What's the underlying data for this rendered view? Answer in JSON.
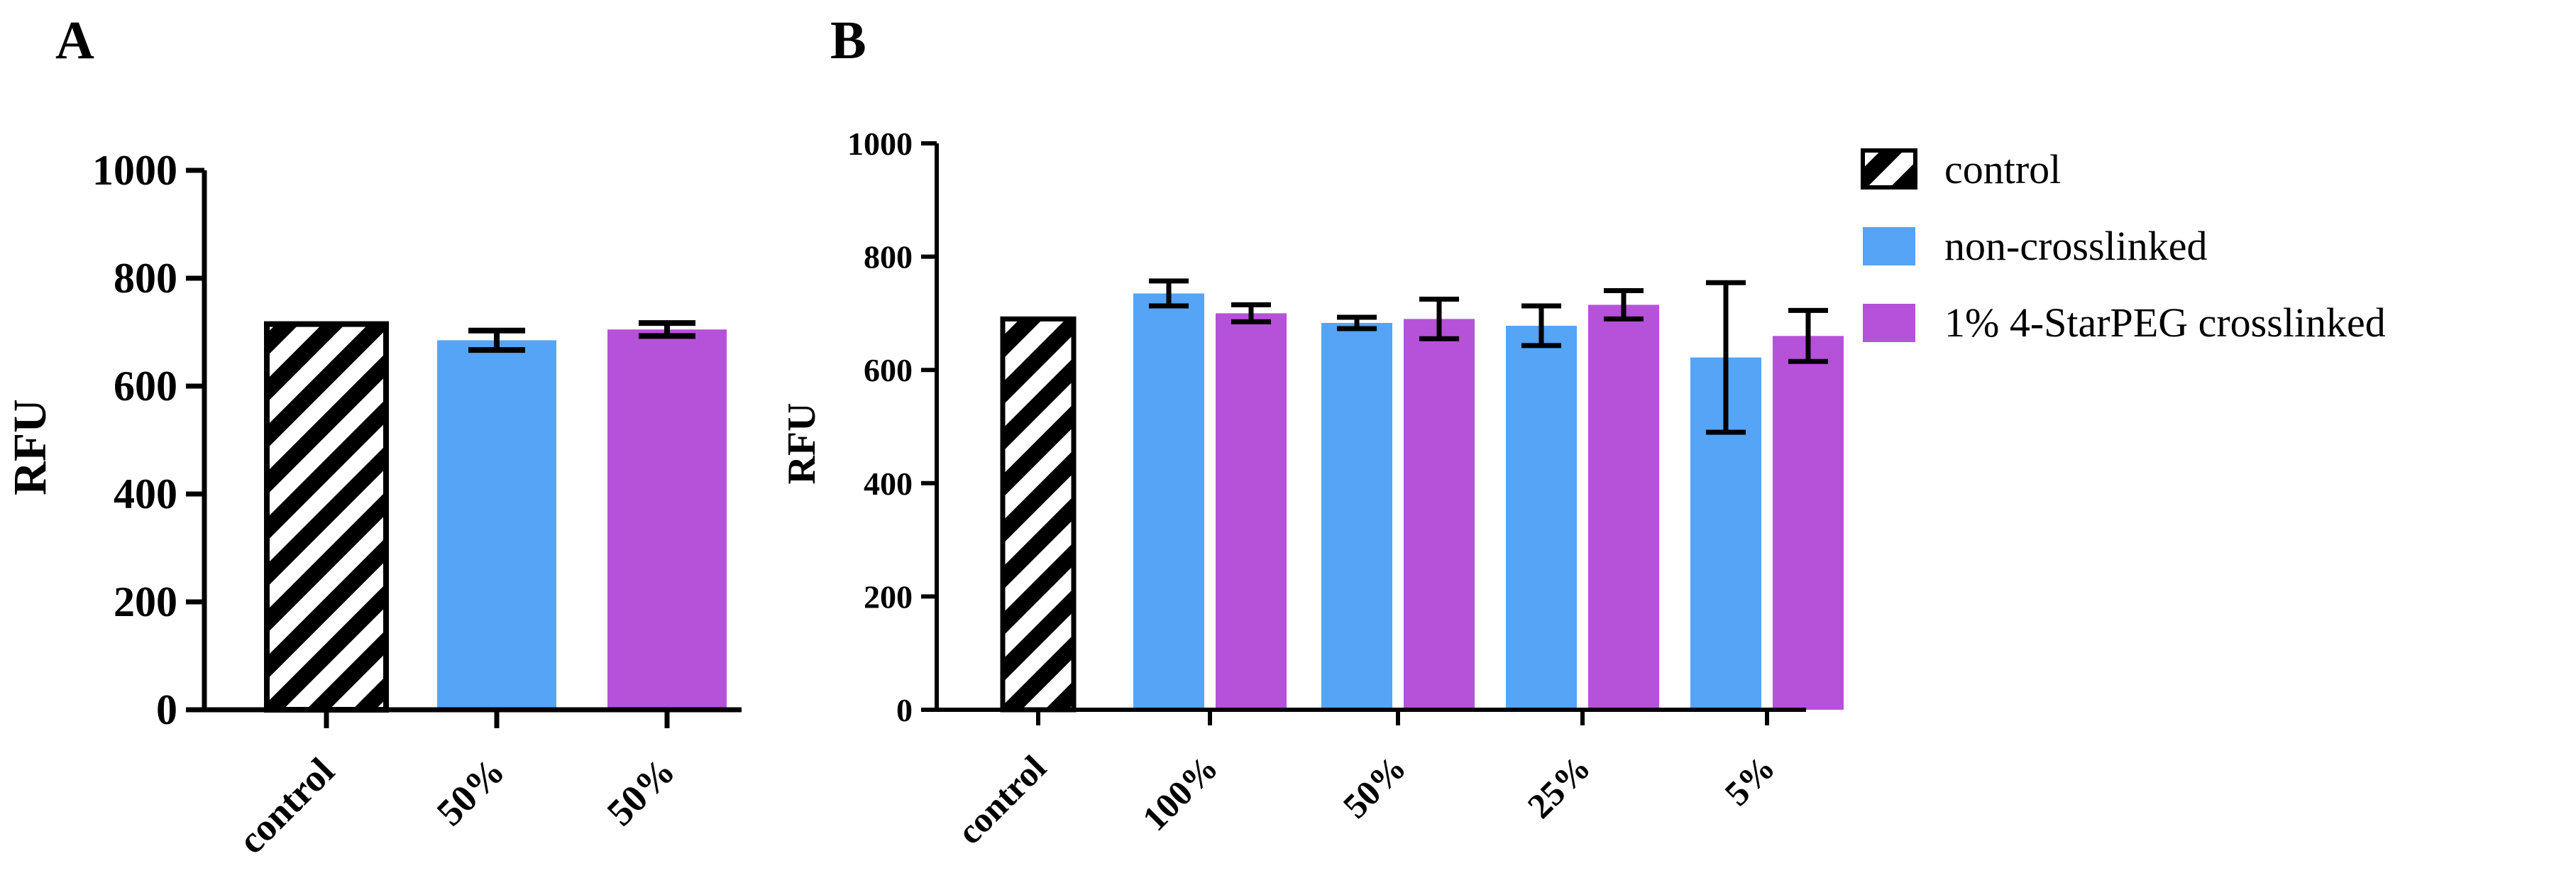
{
  "colors": {
    "control": "#ffffff",
    "non_crosslinked": "#55a4f5",
    "crosslinked": "#b552d9",
    "axis": "#000000"
  },
  "legend": {
    "placement": "right",
    "items": [
      {
        "label": "control",
        "pattern": "hatched",
        "color": "#ffffff"
      },
      {
        "label": "non-crosslinked",
        "pattern": "solid",
        "color": "#55a4f5"
      },
      {
        "label": "1% 4-StarPEG crosslinked",
        "pattern": "solid",
        "color": "#b552d9"
      }
    ]
  },
  "chart_data": [
    {
      "panel": "A",
      "type": "bar",
      "ylabel": "RFU",
      "ylim": [
        0,
        1000
      ],
      "yticks": [
        "0",
        "200",
        "400",
        "600",
        "800",
        "1000"
      ],
      "categories": [
        "control",
        "50%",
        "50%"
      ],
      "bars": [
        {
          "category": "control",
          "group": "control",
          "value": 715,
          "error": 0
        },
        {
          "category": "50%",
          "group": "non-crosslinked",
          "value": 685,
          "error": 18
        },
        {
          "category": "50%",
          "group": "1% 4-StarPEG crosslinked",
          "value": 705,
          "error": 12
        }
      ],
      "grid": false
    },
    {
      "panel": "B",
      "type": "bar",
      "ylabel": "RFU",
      "ylim": [
        0,
        1000
      ],
      "yticks": [
        "0",
        "200",
        "400",
        "600",
        "800",
        "1000"
      ],
      "categories": [
        "control",
        "100%",
        "50%",
        "25%",
        "5%"
      ],
      "bars": [
        {
          "category": "control",
          "group": "control",
          "value": 690,
          "error": 0
        },
        {
          "category": "100%",
          "group": "non-crosslinked",
          "value": 735,
          "error": 22
        },
        {
          "category": "100%",
          "group": "1% 4-StarPEG crosslinked",
          "value": 700,
          "error": 15
        },
        {
          "category": "50%",
          "group": "non-crosslinked",
          "value": 683,
          "error": 10
        },
        {
          "category": "50%",
          "group": "1% 4-StarPEG crosslinked",
          "value": 690,
          "error": 35
        },
        {
          "category": "25%",
          "group": "non-crosslinked",
          "value": 678,
          "error": 35
        },
        {
          "category": "25%",
          "group": "1% 4-StarPEG crosslinked",
          "value": 715,
          "error": 25
        },
        {
          "category": "5%",
          "group": "non-crosslinked",
          "value": 622,
          "error": 132
        },
        {
          "category": "5%",
          "group": "1% 4-StarPEG crosslinked",
          "value": 660,
          "error": 45
        }
      ],
      "grid": false
    }
  ]
}
